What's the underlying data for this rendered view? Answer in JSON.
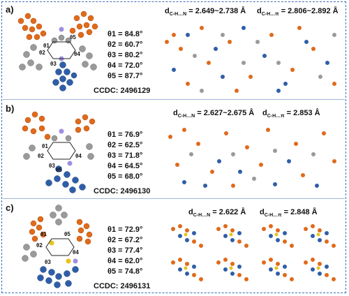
{
  "colors": {
    "frame": "#3a6fb0",
    "orange": "#e06a1b",
    "blue": "#2f5ea8",
    "gray": "#9a9a9a",
    "purple": "#9d8fe0",
    "yellow": "#e8c21a"
  },
  "panels": [
    {
      "label": "a)",
      "angles": [
        "θ1 = 84.8°",
        "θ2 = 60.7°",
        "θ3 = 80.2°",
        "θ4 = 72.0°",
        "θ5 = 87.7°"
      ],
      "ccdc": "CCDC: 2496129",
      "dist_n": "= 2.649~2.738 Å",
      "dist_pi": "= 2.806~2.892 Å"
    },
    {
      "label": "b)",
      "angles": [
        "θ1 = 76.9°",
        "θ2 = 62.5°",
        "θ3 = 71.8°",
        "θ4 = 64.5°",
        "θ5 = 68.0°"
      ],
      "ccdc": "CCDC: 2496130",
      "dist_n": "= 2.627~2.675 Å",
      "dist_pi": "= 2.853 Å"
    },
    {
      "label": "c)",
      "angles": [
        "θ1 = 72.9°",
        "θ2 = 67.2°",
        "θ3 = 77.4°",
        "θ4 = 62.0°",
        "θ5 = 74.8°"
      ],
      "ccdc": "CCDC: 2496131",
      "dist_n": "= 2.622 Å",
      "dist_pi": "= 2.848 Å"
    }
  ],
  "dist_labels": {
    "d": "d",
    "sub_n": "C-H…N",
    "sub_pi": "C-H…π"
  },
  "theta_marks": [
    "θ1",
    "θ2",
    "θ3",
    "θ4",
    "θ5"
  ]
}
